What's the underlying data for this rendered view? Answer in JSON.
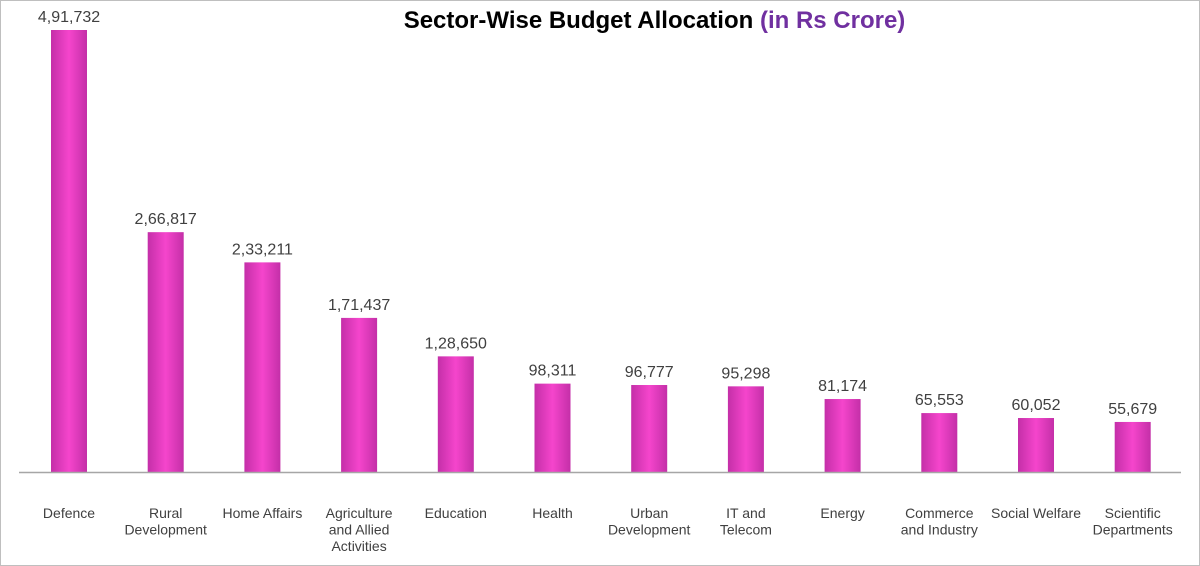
{
  "chart_data": {
    "type": "bar",
    "title": "Sector-Wise Budget Allocation",
    "subtitle": "(in Rs Crore)",
    "categories": [
      [
        "Defence"
      ],
      [
        "Rural",
        "Development"
      ],
      [
        "Home Affairs"
      ],
      [
        "Agriculture",
        "and Allied",
        "Activities"
      ],
      [
        "Education"
      ],
      [
        "Health"
      ],
      [
        "Urban",
        "Development"
      ],
      [
        "IT and",
        "Telecom"
      ],
      [
        "Energy"
      ],
      [
        "Commerce",
        "and Industry"
      ],
      [
        "Social Welfare"
      ],
      [
        "Scientific",
        "Departments"
      ]
    ],
    "values": [
      491732,
      266817,
      233211,
      171437,
      128650,
      98311,
      96777,
      95298,
      81174,
      65553,
      60052,
      55679
    ],
    "value_labels": [
      "4,91,732",
      "2,66,817",
      "2,33,211",
      "1,71,437",
      "1,28,650",
      "98,311",
      "96,777",
      "95,298",
      "81,174",
      "65,553",
      "60,052",
      "55,679"
    ],
    "xlabel": "",
    "ylabel": "",
    "grid": false,
    "legend": "none",
    "colors": {
      "bar_center": "#f545cc",
      "bar_edge": "#c42fa8",
      "title": "#000000",
      "subtitle": "#7030a0",
      "axis": "#a6a6a6",
      "text": "#404040"
    }
  }
}
